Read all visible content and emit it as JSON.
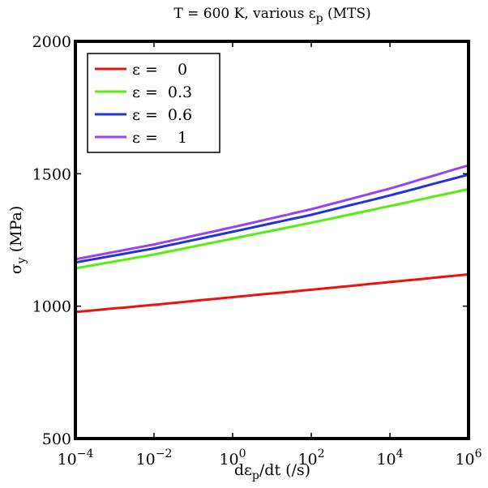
{
  "chart_data": {
    "type": "line",
    "title": {
      "prefix": "T = 600 K, various ",
      "symbol": "ε",
      "subscript": "p",
      "suffix": " (MTS)"
    },
    "xlabel": {
      "prefix": "dε",
      "subscript": "p",
      "suffix": "/dt (/s)"
    },
    "ylabel": {
      "symbol": "σ",
      "subscript": "y",
      "suffix": " (MPa)"
    },
    "x_scale": "log10",
    "xlim_exp": [
      -4,
      6
    ],
    "ylim": [
      500,
      2000
    ],
    "x_ticks": [
      {
        "exp": -4,
        "base": "10",
        "sup": "−4"
      },
      {
        "exp": -2,
        "base": "10",
        "sup": "−2"
      },
      {
        "exp": 0,
        "base": "10",
        "sup": "0"
      },
      {
        "exp": 2,
        "base": "10",
        "sup": "2"
      },
      {
        "exp": 4,
        "base": "10",
        "sup": "4"
      },
      {
        "exp": 6,
        "base": "10",
        "sup": "6"
      }
    ],
    "y_ticks": [
      {
        "value": 500,
        "label": "500"
      },
      {
        "value": 1000,
        "label": "1000"
      },
      {
        "value": 1500,
        "label": "1500"
      },
      {
        "value": 2000,
        "label": "2000"
      }
    ],
    "grid": false,
    "legend_position": "top-left",
    "series": [
      {
        "name": "ε =    0",
        "color": "#ee1111",
        "x_exp": [
          -4,
          -2,
          0,
          2,
          4,
          6
        ],
        "values": [
          978,
          1005,
          1034,
          1062,
          1091,
          1120
        ]
      },
      {
        "name": "ε =  0.3",
        "color": "#55ee11",
        "x_exp": [
          -4,
          -2,
          0,
          2,
          4,
          6
        ],
        "values": [
          1143,
          1195,
          1255,
          1315,
          1378,
          1442
        ]
      },
      {
        "name": "ε =  0.6",
        "color": "#2233dd",
        "x_exp": [
          -4,
          -2,
          0,
          2,
          4,
          6
        ],
        "values": [
          1165,
          1218,
          1281,
          1345,
          1418,
          1497
        ]
      },
      {
        "name": "ε =    1",
        "color": "#9944ee",
        "x_exp": [
          -4,
          -2,
          0,
          2,
          4,
          6
        ],
        "values": [
          1177,
          1233,
          1298,
          1366,
          1444,
          1532
        ]
      }
    ]
  }
}
